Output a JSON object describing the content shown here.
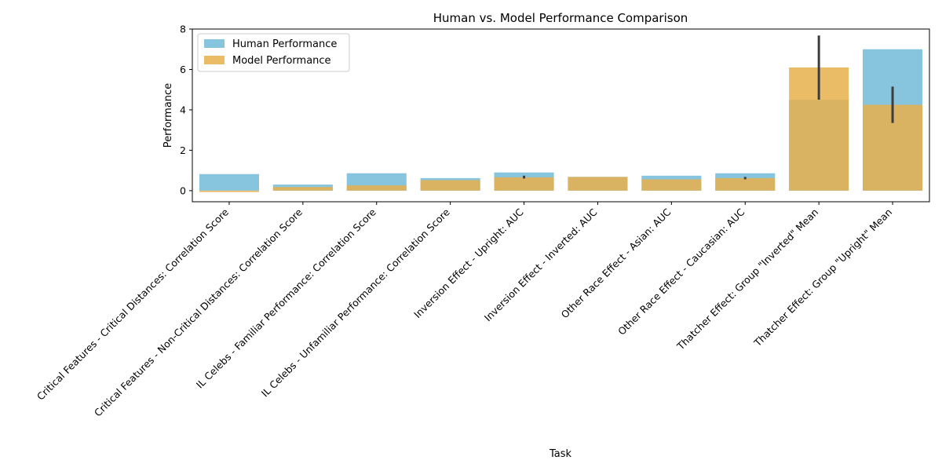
{
  "chart_data": {
    "type": "bar",
    "title": "Human vs. Model Performance Comparison",
    "xlabel": "Task",
    "ylabel": "Performance",
    "ylim": [
      -0.55,
      8
    ],
    "yticks": [
      0,
      2,
      4,
      6,
      8
    ],
    "legend_position": "top-left",
    "grid": false,
    "categories": [
      "Critical Features - Critical Distances: Correlation Score",
      "Critical Features - Non-Critical Distances: Correlation Score",
      "IL Celebs - Familiar Performance: Correlation Score",
      "IL Celebs - Unfamiliar Performance: Correlation Score",
      "Inversion Effect - Upright: AUC",
      "Inversion Effect - Inverted: AUC",
      "Other Race Effect - Asian: AUC",
      "Other Race Effect - Caucasian: AUC",
      "Thatcher Effect: Group \"Inverted\" Mean",
      "Thatcher Effect: Group \"Upright\" Mean"
    ],
    "series": [
      {
        "name": "Human Performance",
        "color": "#87c4de",
        "values": [
          0.82,
          0.3,
          0.86,
          0.62,
          0.9,
          0.68,
          0.74,
          0.86,
          4.5,
          7.0
        ]
      },
      {
        "name": "Model Performance",
        "color": "#e8b04b",
        "values": [
          -0.07,
          0.18,
          0.26,
          0.52,
          0.66,
          0.68,
          0.56,
          0.62,
          6.1,
          4.25
        ]
      }
    ],
    "error_bars": [
      {
        "category_index": 4,
        "low": 0.6,
        "high": 0.74
      },
      {
        "category_index": 7,
        "low": 0.56,
        "high": 0.68
      },
      {
        "category_index": 8,
        "low": 4.5,
        "high": 7.68
      },
      {
        "category_index": 9,
        "low": 3.35,
        "high": 5.15
      }
    ]
  }
}
